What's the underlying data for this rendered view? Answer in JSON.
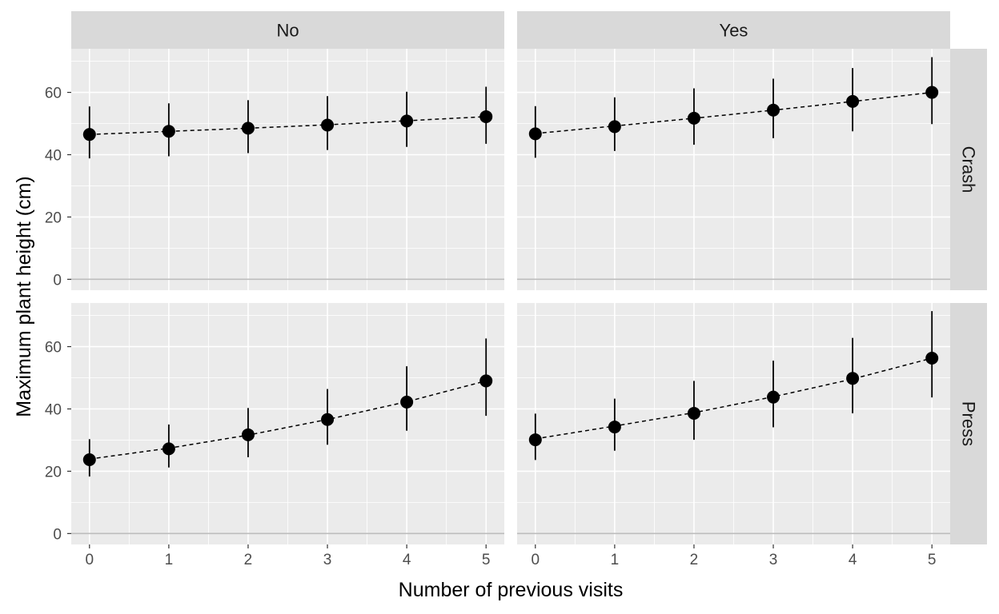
{
  "chart_data": {
    "type": "scatter",
    "layout": "facet_grid",
    "xlabel": "Number of previous visits",
    "ylabel": "Maximum plant height (cm)",
    "x_ticks": [
      0,
      1,
      2,
      3,
      4,
      5
    ],
    "y_ticks": [
      0,
      20,
      40,
      60
    ],
    "ylim": [
      -3.5,
      74
    ],
    "xlim": [
      -0.23,
      5.23
    ],
    "grid": true,
    "col_facets": [
      "No",
      "Yes"
    ],
    "row_facets": [
      "Crash",
      "Press"
    ],
    "panels": [
      {
        "col": "No",
        "row": "Crash",
        "x": [
          0,
          1,
          2,
          3,
          4,
          5
        ],
        "y": [
          46.5,
          47.5,
          48.5,
          49.5,
          50.8,
          52.2
        ],
        "lower": [
          38.8,
          39.5,
          40.5,
          41.5,
          42.5,
          43.5
        ],
        "upper": [
          55.5,
          56.5,
          57.5,
          58.8,
          60.2,
          61.8
        ],
        "fit": [
          46.5,
          47.5,
          48.5,
          49.6,
          50.9,
          52.2
        ]
      },
      {
        "col": "Yes",
        "row": "Crash",
        "x": [
          0,
          1,
          2,
          3,
          4,
          5
        ],
        "y": [
          46.7,
          49.0,
          51.7,
          54.3,
          57.1,
          60.0
        ],
        "lower": [
          39.0,
          41.2,
          43.2,
          45.3,
          47.5,
          49.8
        ],
        "upper": [
          55.6,
          58.4,
          61.3,
          64.4,
          67.8,
          71.3
        ],
        "fit": [
          46.8,
          49.2,
          51.7,
          54.3,
          57.1,
          60.0
        ]
      },
      {
        "col": "No",
        "row": "Press",
        "x": [
          0,
          1,
          2,
          3,
          4,
          5
        ],
        "y": [
          23.7,
          27.2,
          31.7,
          36.6,
          42.2,
          49.0
        ],
        "lower": [
          18.3,
          21.2,
          24.5,
          28.5,
          33.0,
          37.8
        ],
        "upper": [
          30.3,
          35.0,
          40.3,
          46.4,
          53.7,
          62.6
        ],
        "fit": [
          23.9,
          27.4,
          31.6,
          36.6,
          42.3,
          49.0
        ]
      },
      {
        "col": "Yes",
        "row": "Press",
        "x": [
          0,
          1,
          2,
          3,
          4,
          5
        ],
        "y": [
          30.1,
          34.2,
          38.6,
          43.8,
          49.8,
          56.3
        ],
        "lower": [
          23.6,
          26.6,
          30.1,
          34.1,
          38.6,
          43.7
        ],
        "upper": [
          38.5,
          43.3,
          49.0,
          55.5,
          62.8,
          71.4
        ],
        "fit": [
          30.4,
          34.5,
          38.8,
          43.9,
          49.6,
          56.3
        ]
      }
    ]
  }
}
